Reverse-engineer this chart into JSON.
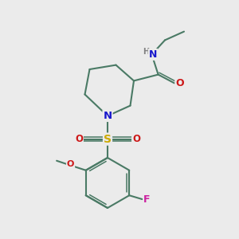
{
  "bg_color": "#ebebeb",
  "bond_color": "#4a7a65",
  "bond_width": 1.5,
  "atom_colors": {
    "N": "#1818cc",
    "O": "#cc1818",
    "S": "#ccaa00",
    "F": "#cc20a0",
    "H": "#808080",
    "C": "#4a7a65"
  },
  "font_size": 8.5,
  "scale": 1.0
}
